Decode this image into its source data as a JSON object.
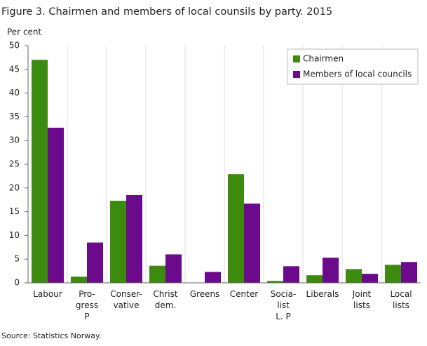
{
  "chart_data": {
    "type": "bar",
    "title": "Figure 3. Chairmen and members of local counsils by party. 2015",
    "y_label": "Per cent",
    "source": "Source: Statistics Norway.",
    "categories": [
      "Labour",
      "Pro-\ngress\nP",
      "Conser-\nvative",
      "Christ\ndem.",
      "Greens",
      "Center",
      "Socia-\nlist\nL. P",
      "Liberals",
      "Joint\nlists",
      "Local\nlists"
    ],
    "series": [
      {
        "name": "Chairmen",
        "color": "#3c8a0e",
        "values": [
          47.0,
          1.3,
          17.3,
          3.6,
          0,
          22.9,
          0.4,
          1.6,
          2.9,
          3.8
        ]
      },
      {
        "name": "Members of local councils",
        "color": "#6b0a8a",
        "values": [
          32.7,
          8.5,
          18.5,
          6.0,
          2.3,
          16.7,
          3.5,
          5.3,
          1.9,
          4.4
        ]
      }
    ],
    "ylim": [
      0,
      50
    ],
    "yticks": [
      0,
      5,
      10,
      15,
      20,
      25,
      30,
      35,
      40,
      45,
      50
    ],
    "legend": "top-right"
  }
}
